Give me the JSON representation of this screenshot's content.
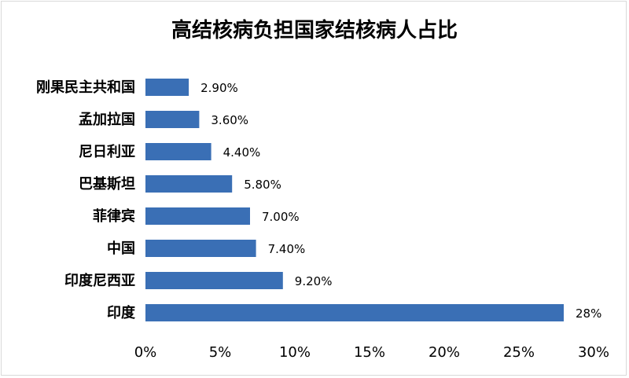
{
  "chart_data": {
    "type": "bar",
    "orientation": "horizontal",
    "title": "高结核病负担国家结核病人占比",
    "categories": [
      "刚果民主共和国",
      "孟加拉国",
      "尼日利亚",
      "巴基斯坦",
      "菲律宾",
      "中国",
      "印度尼西亚",
      "印度"
    ],
    "values": [
      2.9,
      3.6,
      4.4,
      5.8,
      7.0,
      7.4,
      9.2,
      28
    ],
    "data_labels": [
      "2.90%",
      "3.60%",
      "4.40%",
      "5.80%",
      "7.00%",
      "7.40%",
      "9.20%",
      "28%"
    ],
    "xlim": [
      0,
      30
    ],
    "x_ticks": [
      "0%",
      "5%",
      "10%",
      "15%",
      "20%",
      "25%",
      "30%"
    ],
    "grid": false,
    "legend": "none",
    "bar_color": "#3a6fb5"
  }
}
